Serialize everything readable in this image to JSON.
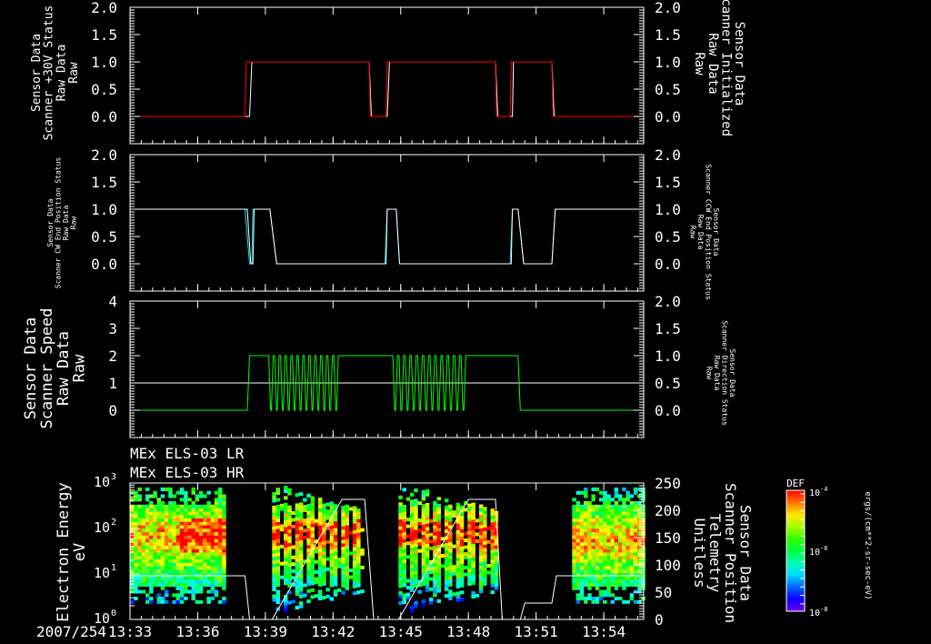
{
  "time_axis": {
    "date_label": "2007/254",
    "ticks": [
      "13:33",
      "13:36",
      "13:39",
      "13:42",
      "13:45",
      "13:48",
      "13:51",
      "13:54"
    ],
    "tick_minutes": [
      0,
      3,
      6,
      9,
      12,
      15,
      18,
      21
    ],
    "range_minutes": [
      0,
      22.77
    ]
  },
  "chart_data": [
    {
      "type": "line",
      "left_label": [
        "Sensor Data",
        "Scanner +30V Status",
        "Raw Data",
        "Raw"
      ],
      "right_label": [
        "Sensor Data",
        "Scanner Initialized",
        "Raw Data",
        "Raw"
      ],
      "left_color": "#ff0000",
      "right_color": "#ffffff",
      "ylim": [
        -0.5,
        2.0
      ],
      "yticks": [
        "0.0",
        "0.5",
        "1.0",
        "1.5",
        "2.0"
      ],
      "ytick_values": [
        0,
        0.5,
        1,
        1.5,
        2
      ],
      "series": [
        {
          "name": "Scanner +30V Status",
          "color": "#ff0000",
          "points": [
            [
              0,
              0
            ],
            [
              5.1,
              0
            ],
            [
              5.15,
              1
            ],
            [
              10.6,
              1
            ],
            [
              10.65,
              0
            ],
            [
              11.35,
              0
            ],
            [
              11.4,
              1
            ],
            [
              16.2,
              1
            ],
            [
              16.25,
              0
            ],
            [
              16.85,
              0
            ],
            [
              16.9,
              1
            ],
            [
              18.7,
              1
            ],
            [
              18.75,
              0
            ],
            [
              22.77,
              0
            ]
          ]
        },
        {
          "name": "Scanner Initialized",
          "color": "#ffffff",
          "points": [
            [
              0,
              0
            ],
            [
              5.3,
              0
            ],
            [
              5.4,
              1
            ],
            [
              10.6,
              1
            ],
            [
              10.7,
              0
            ],
            [
              11.4,
              0
            ],
            [
              11.5,
              1
            ],
            [
              16.2,
              1
            ],
            [
              16.3,
              0
            ],
            [
              16.95,
              0
            ],
            [
              17.0,
              1
            ],
            [
              18.7,
              1
            ],
            [
              18.8,
              0
            ],
            [
              22.77,
              0
            ]
          ]
        }
      ]
    },
    {
      "type": "line",
      "left_label": [
        "Sensor Data",
        "Scanner CW End Position Status",
        "Raw Data",
        "Raw"
      ],
      "right_label": [
        "Sensor Data",
        "Scanner CCW End Position Status",
        "Raw Data",
        "Raw"
      ],
      "left_color": "#ff0000",
      "right_color": "#00e5ff",
      "ylim": [
        -0.5,
        2.0
      ],
      "yticks": [
        "0.0",
        "0.5",
        "1.0",
        "1.5",
        "2.0"
      ],
      "ytick_values": [
        0,
        0.5,
        1,
        1.5,
        2
      ],
      "series": [
        {
          "name": "Scanner CW End Position Status",
          "color": "#ffffff",
          "points": [
            [
              0,
              1
            ],
            [
              5.2,
              1
            ],
            [
              5.35,
              0
            ],
            [
              5.45,
              0
            ],
            [
              5.5,
              1
            ],
            [
              6.2,
              1
            ],
            [
              6.5,
              0
            ],
            [
              11.35,
              0
            ],
            [
              11.4,
              1
            ],
            [
              11.8,
              1
            ],
            [
              11.95,
              0
            ],
            [
              16.9,
              0
            ],
            [
              16.95,
              1
            ],
            [
              17.2,
              1
            ],
            [
              17.45,
              0
            ],
            [
              18.7,
              0
            ],
            [
              18.85,
              1
            ],
            [
              22.77,
              1
            ]
          ]
        },
        {
          "name": "Scanner CCW End Position Status",
          "color": "#00e5ff",
          "points": [
            [
              0,
              1
            ],
            [
              5.1,
              1
            ],
            [
              5.3,
              0
            ],
            [
              5.4,
              0
            ],
            [
              5.45,
              1
            ],
            [
              5.5,
              1
            ],
            [
              6.2,
              1
            ],
            [
              6.5,
              0
            ],
            [
              11.3,
              0
            ],
            [
              11.4,
              1
            ],
            [
              11.8,
              1
            ],
            [
              11.95,
              0
            ],
            [
              16.85,
              0
            ],
            [
              16.95,
              1
            ],
            [
              17.2,
              1
            ],
            [
              17.45,
              0
            ],
            [
              18.7,
              0
            ],
            [
              18.85,
              1
            ],
            [
              22.77,
              1
            ]
          ]
        }
      ]
    },
    {
      "type": "line",
      "left_label": [
        "Sensor Data",
        "Scanner Speed",
        "Raw Data",
        "Raw"
      ],
      "right_label": [
        "Sensor Data",
        "Scanner Direction Status",
        "Raw Data",
        "Raw"
      ],
      "left_color": "#ffffff",
      "right_color": "#00ff00",
      "ylim": [
        -1,
        4
      ],
      "yticks": [
        "0",
        "1",
        "2",
        "3",
        "4"
      ],
      "ytick_values": [
        0,
        1,
        2,
        3,
        4
      ],
      "right_ylim": [
        -0.5,
        2.0
      ],
      "right_yticks": [
        "0.0",
        "0.5",
        "1.0",
        "1.5",
        "2.0"
      ],
      "right_ytick_values": [
        0,
        0.5,
        1,
        1.5,
        2
      ],
      "series": [
        {
          "name": "Scanner Speed",
          "color": "#00ff00",
          "points": [
            [
              0,
              0
            ],
            [
              5.2,
              0
            ],
            [
              5.3,
              2
            ],
            [
              6.1,
              2
            ]
          ],
          "oscillations": [
            {
              "start": 6.15,
              "end": 9.3,
              "cycles": 12,
              "low": 0,
              "high": 2
            }
          ],
          "points2": [
            [
              9.3,
              2
            ],
            [
              11.6,
              2
            ]
          ],
          "oscillations2": [
            {
              "start": 11.65,
              "end": 14.95,
              "cycles": 12,
              "low": 0,
              "high": 2
            }
          ],
          "points3": [
            [
              14.95,
              2
            ],
            [
              17.2,
              2
            ],
            [
              17.3,
              0
            ],
            [
              22.77,
              0
            ]
          ]
        },
        {
          "name": "Scanner Direction Status",
          "color": "#ffffff",
          "points": [
            [
              0,
              1
            ],
            [
              22.77,
              1
            ]
          ]
        }
      ]
    },
    {
      "type": "heatmap",
      "titles": [
        "MEx ELS-03 LR",
        "MEx ELS-03 HR"
      ],
      "left_label": [
        "Electron Energy",
        "eV"
      ],
      "right_label": [
        "Sensor Data",
        "Scanner Position",
        "Telemetry",
        "Unitless"
      ],
      "yscale": "log",
      "ylim_log10": [
        0,
        3
      ],
      "yticks": [
        "10",
        "10",
        "10",
        "10"
      ],
      "ytick_exponents": [
        "0",
        "1",
        "2",
        "3"
      ],
      "right_ylim": [
        0,
        250
      ],
      "right_yticks": [
        "0",
        "50",
        "100",
        "150",
        "200",
        "250"
      ],
      "right_ytick_values": [
        0,
        50,
        100,
        150,
        200,
        250
      ],
      "data_blocks": [
        {
          "start": 0.0,
          "end": 4.1,
          "mode": "steady",
          "peak_log10": 1.8,
          "hot_start": 2.2
        },
        {
          "start": 6.3,
          "end": 10.35,
          "mode": "sweep",
          "peak_log10": 1.85
        },
        {
          "start": 11.9,
          "end": 16.3,
          "mode": "sweep",
          "peak_log10": 1.85
        },
        {
          "start": 19.6,
          "end": 22.77,
          "mode": "steady",
          "peak_log10": 1.7
        }
      ],
      "scanner_position": {
        "color": "#ffffff",
        "points": [
          [
            0,
            80
          ],
          [
            5.1,
            80
          ],
          [
            5.3,
            0
          ],
          [
            6.3,
            0
          ],
          [
            9.4,
            220
          ],
          [
            10.4,
            220
          ],
          [
            10.8,
            0
          ],
          [
            11.9,
            0
          ],
          [
            15.0,
            220
          ],
          [
            16.2,
            220
          ],
          [
            16.5,
            0
          ],
          [
            17.3,
            0
          ],
          [
            17.5,
            30
          ],
          [
            18.7,
            30
          ],
          [
            18.9,
            80
          ],
          [
            22.77,
            80
          ]
        ]
      },
      "colorbar": {
        "title": "DEF",
        "labels": [
          "10",
          "10",
          "10"
        ],
        "label_exponents": [
          "-4",
          "-6",
          "-8"
        ],
        "units": "ergs/(cm**2-sr-sec-eV)"
      }
    }
  ]
}
